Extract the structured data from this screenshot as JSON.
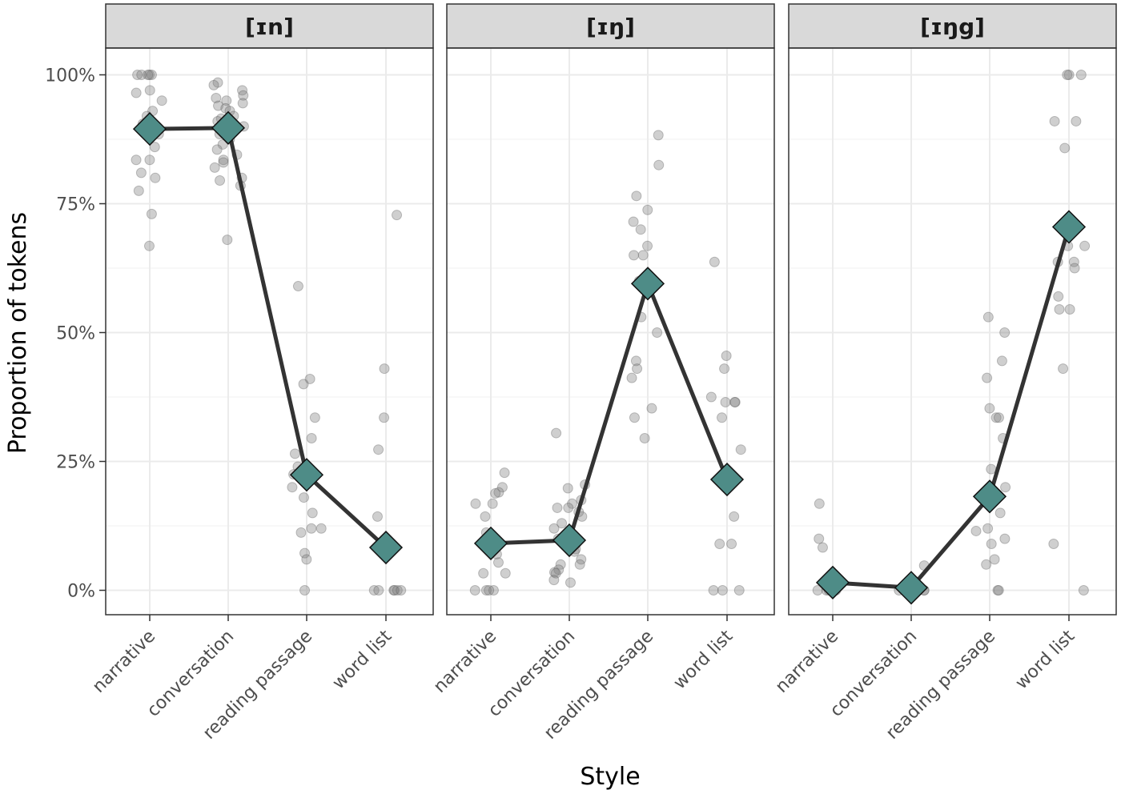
{
  "chart_data": {
    "type": "scatter",
    "ylabel": "Proportion of tokens",
    "xlabel": "Style",
    "categories": [
      "narrative",
      "conversation",
      "reading passage",
      "word list"
    ],
    "ylim": [
      0,
      1
    ],
    "yticks": [
      {
        "value": 0,
        "label": "0%"
      },
      {
        "value": 0.25,
        "label": "25%"
      },
      {
        "value": 0.5,
        "label": "50%"
      },
      {
        "value": 0.75,
        "label": "75%"
      },
      {
        "value": 1,
        "label": "100%"
      }
    ],
    "grid": true,
    "colors": {
      "mean_marker": "#4e8c87",
      "line": "#333333",
      "points": "#808080",
      "strip_bg": "#d9d9d9",
      "grid": "#ebebeb",
      "frame": "#333333"
    },
    "panels": [
      {
        "title": "[ɪn]",
        "means": [
          0.895,
          0.897,
          0.224,
          0.083
        ],
        "points": [
          [
            1.0,
            1.0,
            1.0,
            1.0,
            1.0,
            0.97,
            0.965,
            0.95,
            0.93,
            0.92,
            0.905,
            0.885,
            0.86,
            0.835,
            0.835,
            0.81,
            0.8,
            0.775,
            0.73,
            0.668
          ],
          [
            0.985,
            0.98,
            0.97,
            0.96,
            0.955,
            0.95,
            0.945,
            0.94,
            0.935,
            0.93,
            0.92,
            0.915,
            0.91,
            0.9,
            0.895,
            0.885,
            0.875,
            0.865,
            0.855,
            0.845,
            0.835,
            0.83,
            0.82,
            0.8,
            0.795,
            0.785,
            0.68
          ],
          [
            0.59,
            0.41,
            0.4,
            0.335,
            0.295,
            0.265,
            0.24,
            0.235,
            0.225,
            0.2,
            0.18,
            0.15,
            0.12,
            0.12,
            0.112,
            0.072,
            0.06,
            0.0
          ],
          [
            0.728,
            0.43,
            0.335,
            0.273,
            0.143,
            0.0,
            0.0,
            0.0,
            0.0,
            0.0,
            0.0
          ]
        ]
      },
      {
        "title": "[ɪŋ]",
        "means": [
          0.091,
          0.097,
          0.595,
          0.215
        ],
        "points": [
          [
            0.228,
            0.2,
            0.19,
            0.188,
            0.168,
            0.168,
            0.143,
            0.112,
            0.09,
            0.08,
            0.07,
            0.054,
            0.033,
            0.033,
            0.0,
            0.0,
            0.0,
            0.0
          ],
          [
            0.305,
            0.205,
            0.198,
            0.175,
            0.168,
            0.16,
            0.16,
            0.152,
            0.143,
            0.13,
            0.12,
            0.1,
            0.09,
            0.08,
            0.075,
            0.06,
            0.05,
            0.05,
            0.04,
            0.035,
            0.033,
            0.02,
            0.015
          ],
          [
            0.883,
            0.825,
            0.765,
            0.738,
            0.715,
            0.7,
            0.668,
            0.65,
            0.65,
            0.6,
            0.53,
            0.5,
            0.445,
            0.43,
            0.412,
            0.353,
            0.335,
            0.295
          ],
          [
            0.637,
            0.455,
            0.43,
            0.375,
            0.365,
            0.365,
            0.365,
            0.335,
            0.273,
            0.143,
            0.09,
            0.09,
            0.0,
            0.0,
            0.0
          ]
        ]
      },
      {
        "title": "[ɪŋg]",
        "means": [
          0.015,
          0.005,
          0.182,
          0.705
        ],
        "points": [
          [
            0.168,
            0.1,
            0.083,
            0.0,
            0.0,
            0.0,
            0.0,
            0.0,
            0.0
          ],
          [
            0.048,
            0.01,
            0.0,
            0.0,
            0.0,
            0.0,
            0.0,
            0.0,
            0.0
          ],
          [
            0.53,
            0.5,
            0.445,
            0.412,
            0.353,
            0.335,
            0.335,
            0.295,
            0.235,
            0.2,
            0.18,
            0.15,
            0.12,
            0.115,
            0.1,
            0.09,
            0.06,
            0.05,
            0.0,
            0.0
          ],
          [
            1.0,
            1.0,
            1.0,
            0.91,
            0.91,
            0.858,
            0.668,
            0.668,
            0.637,
            0.637,
            0.625,
            0.57,
            0.545,
            0.545,
            0.43,
            0.09,
            0.0
          ]
        ]
      }
    ]
  }
}
